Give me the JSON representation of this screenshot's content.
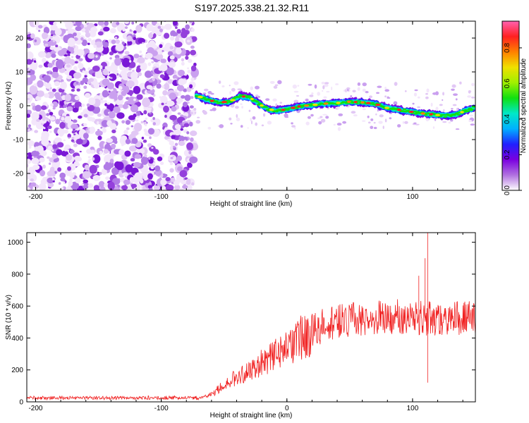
{
  "title": "S197.2025.338.21.32.R11",
  "chart_data": [
    {
      "type": "heatmap",
      "xlabel": "Height of straight line (km)",
      "ylabel": "Frequency (Hz)",
      "xlim": [
        -207,
        150
      ],
      "ylim": [
        -25,
        25
      ],
      "xticks": [
        -200,
        -100,
        0,
        100
      ],
      "xtick_labels": [
        "-200",
        "-100",
        "0",
        "100"
      ],
      "yticks": [
        20,
        10,
        0,
        -10,
        -20
      ],
      "ytick_labels": [
        "20",
        "10",
        "0",
        "-10",
        "-20"
      ],
      "noise_region_x": [
        -207,
        -73
      ],
      "track": [
        {
          "x": -72,
          "y": 3.0
        },
        {
          "x": -65,
          "y": 2.0
        },
        {
          "x": -55,
          "y": 1.0
        },
        {
          "x": -45,
          "y": 1.2
        },
        {
          "x": -38,
          "y": 2.8
        },
        {
          "x": -30,
          "y": 2.6
        },
        {
          "x": -22,
          "y": 0.5
        },
        {
          "x": -15,
          "y": -1.0
        },
        {
          "x": -8,
          "y": -1.5
        },
        {
          "x": 0,
          "y": -1.0
        },
        {
          "x": 10,
          "y": -0.2
        },
        {
          "x": 20,
          "y": 0.2
        },
        {
          "x": 30,
          "y": 0.6
        },
        {
          "x": 40,
          "y": 0.8
        },
        {
          "x": 50,
          "y": 1.2
        },
        {
          "x": 60,
          "y": 1.0
        },
        {
          "x": 70,
          "y": 0.6
        },
        {
          "x": 78,
          "y": -0.5
        },
        {
          "x": 85,
          "y": -1.0
        },
        {
          "x": 95,
          "y": -1.5
        },
        {
          "x": 105,
          "y": -2.2
        },
        {
          "x": 115,
          "y": -2.5
        },
        {
          "x": 125,
          "y": -3.0
        },
        {
          "x": 135,
          "y": -2.5
        },
        {
          "x": 142,
          "y": -1.5
        },
        {
          "x": 150,
          "y": -0.5
        }
      ],
      "colorbar": {
        "label": "Normalized spectral amplitude",
        "range": [
          0,
          0.95
        ],
        "ticks": [
          0.0,
          0.2,
          0.4,
          0.6,
          0.8
        ],
        "tick_labels": [
          "0.0",
          "0.2",
          "0.4",
          "0.6",
          "0.8"
        ],
        "colors": [
          "#ffffff",
          "#b070e0",
          "#7a00e0",
          "#2020ff",
          "#00b0ff",
          "#00e8c8",
          "#10e010",
          "#a0f000",
          "#f0e000",
          "#ff8000",
          "#ff2020",
          "#ff60b0"
        ]
      }
    },
    {
      "type": "line",
      "xlabel": "Height of straight line (km)",
      "ylabel": "SNR (10 * v/v)",
      "xlim": [
        -207,
        150
      ],
      "ylim": [
        0,
        1060
      ],
      "xticks": [
        -200,
        -100,
        0,
        100
      ],
      "xtick_labels": [
        "-200",
        "-100",
        "0",
        "100"
      ],
      "yticks": [
        0,
        200,
        400,
        600,
        800,
        1000
      ],
      "ytick_labels": [
        "0",
        "200",
        "400",
        "600",
        "800",
        "1000"
      ],
      "color": "#f02020",
      "series_envelope": [
        {
          "x": -207,
          "y": 25
        },
        {
          "x": -70,
          "y": 25
        },
        {
          "x": -60,
          "y": 45
        },
        {
          "x": -50,
          "y": 110
        },
        {
          "x": -40,
          "y": 155
        },
        {
          "x": -30,
          "y": 195
        },
        {
          "x": -20,
          "y": 245
        },
        {
          "x": -10,
          "y": 290
        },
        {
          "x": 0,
          "y": 340
        },
        {
          "x": 10,
          "y": 395
        },
        {
          "x": 20,
          "y": 445
        },
        {
          "x": 30,
          "y": 480
        },
        {
          "x": 40,
          "y": 505
        },
        {
          "x": 50,
          "y": 515
        },
        {
          "x": 60,
          "y": 520
        },
        {
          "x": 70,
          "y": 525
        },
        {
          "x": 80,
          "y": 530
        },
        {
          "x": 90,
          "y": 535
        },
        {
          "x": 100,
          "y": 530
        },
        {
          "x": 110,
          "y": 525
        },
        {
          "x": 120,
          "y": 525
        },
        {
          "x": 130,
          "y": 520
        },
        {
          "x": 140,
          "y": 525
        },
        {
          "x": 150,
          "y": 525
        }
      ],
      "spikes": [
        {
          "x": 112,
          "y": 1060
        },
        {
          "x": 110,
          "y": 900
        },
        {
          "x": 112,
          "y": 120
        },
        {
          "x": 105,
          "y": 790
        }
      ]
    }
  ]
}
